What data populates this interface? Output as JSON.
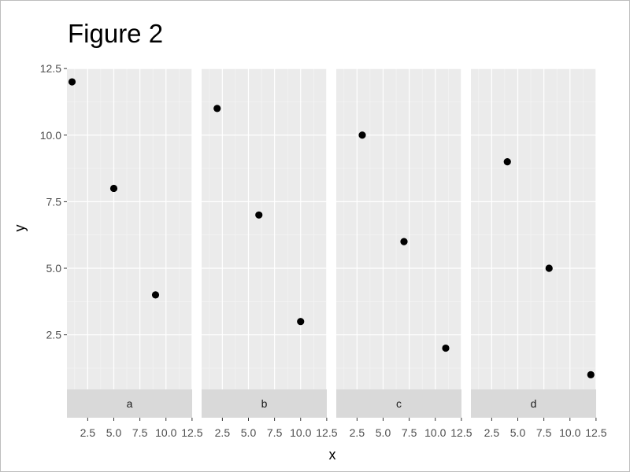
{
  "chart_data": {
    "type": "scatter",
    "title": "Figure 2",
    "xlabel": "x",
    "ylabel": "y",
    "xlim": [
      1,
      12
    ],
    "ylim": [
      1,
      12
    ],
    "x_ticks": [
      "2.5",
      "5.0",
      "7.5",
      "10.0",
      "12.5"
    ],
    "y_ticks": [
      "2.5",
      "5.0",
      "7.5",
      "10.0",
      "12.5"
    ],
    "facets": [
      {
        "label": "a",
        "points": [
          {
            "x": 1,
            "y": 12
          },
          {
            "x": 5,
            "y": 8
          },
          {
            "x": 9,
            "y": 4
          }
        ]
      },
      {
        "label": "b",
        "points": [
          {
            "x": 2,
            "y": 11
          },
          {
            "x": 6,
            "y": 7
          },
          {
            "x": 10,
            "y": 3
          }
        ]
      },
      {
        "label": "c",
        "points": [
          {
            "x": 3,
            "y": 10
          },
          {
            "x": 7,
            "y": 6
          },
          {
            "x": 11,
            "y": 2
          }
        ]
      },
      {
        "label": "d",
        "points": [
          {
            "x": 4,
            "y": 9
          },
          {
            "x": 8,
            "y": 5
          },
          {
            "x": 12,
            "y": 1
          }
        ]
      }
    ],
    "strip_position": "bottom",
    "grid": true,
    "colors": {
      "panel_background": "#ebebeb",
      "grid_major": "#ffffff",
      "grid_minor": "#f5f5f5",
      "strip_background": "#d9d9d9",
      "point": "#000000",
      "tick_text": "#4d4d4d"
    }
  }
}
